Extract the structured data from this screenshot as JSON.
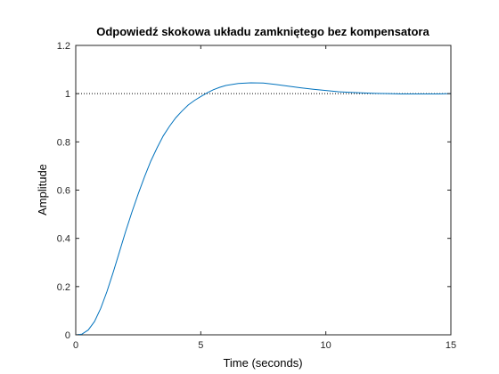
{
  "chart_data": {
    "type": "line",
    "title": "Odpowiedź skokowa układu zamkniętego bez kompensatora",
    "xlabel": "Time (seconds)",
    "ylabel": "Amplitude",
    "xlim": [
      0,
      15
    ],
    "ylim": [
      0,
      1.2
    ],
    "xticks": [
      0,
      5,
      10,
      15
    ],
    "xtick_labels": [
      "0",
      "5",
      "10",
      "15"
    ],
    "yticks": [
      0,
      0.2,
      0.4,
      0.6,
      0.8,
      1.0,
      1.2
    ],
    "ytick_labels": [
      "0",
      "0.2",
      "0.4",
      "0.6",
      "0.8",
      "1",
      "1.2"
    ],
    "grid": false,
    "reference_line": {
      "y": 1.0,
      "style": "dotted"
    },
    "series": [
      {
        "color": "#0072bd",
        "x": [
          0,
          0.25,
          0.5,
          0.75,
          1.0,
          1.25,
          1.5,
          1.75,
          2.0,
          2.25,
          2.5,
          2.75,
          3.0,
          3.25,
          3.5,
          3.75,
          4.0,
          4.25,
          4.5,
          4.75,
          5.0,
          5.25,
          5.5,
          5.75,
          6.0,
          6.5,
          7.0,
          7.5,
          8.0,
          8.5,
          9.0,
          9.5,
          10.0,
          10.5,
          11.0,
          11.5,
          12.0,
          12.5,
          13.0,
          13.5,
          14.0,
          14.5,
          15.0
        ],
        "y": [
          0,
          0.003,
          0.02,
          0.055,
          0.11,
          0.18,
          0.26,
          0.345,
          0.43,
          0.51,
          0.585,
          0.655,
          0.72,
          0.775,
          0.825,
          0.865,
          0.9,
          0.928,
          0.953,
          0.972,
          0.988,
          1.003,
          1.016,
          1.026,
          1.034,
          1.042,
          1.045,
          1.044,
          1.038,
          1.031,
          1.024,
          1.018,
          1.013,
          1.008,
          1.005,
          1.003,
          1.001,
          1.0,
          0.999,
          0.999,
          0.999,
          0.999,
          1.0
        ]
      }
    ]
  }
}
